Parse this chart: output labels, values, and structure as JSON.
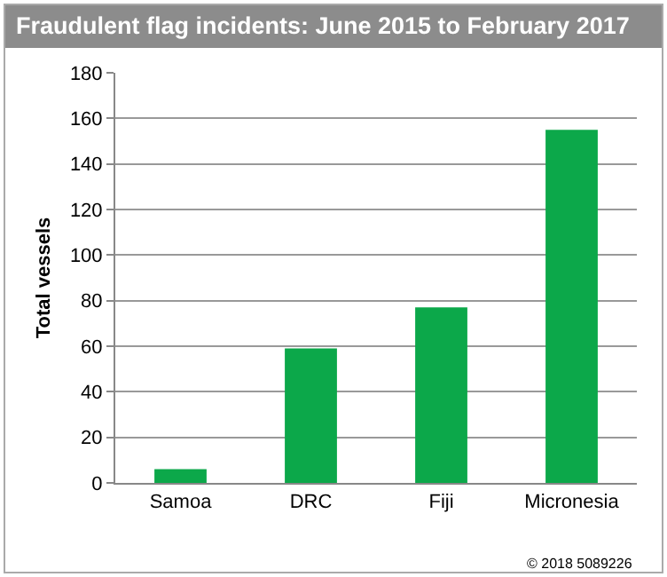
{
  "chart_data": {
    "type": "bar",
    "title": "Fraudulent flag incidents: June 2015 to February 2017",
    "categories": [
      "Samoa",
      "DRC",
      "Fiji",
      "Micronesia"
    ],
    "values": [
      6,
      59,
      77,
      155
    ],
    "color": "#0ca84a",
    "ylabel": "Total vessels",
    "ylim": [
      0,
      180
    ],
    "yticks": [
      0,
      20,
      40,
      60,
      80,
      100,
      120,
      140,
      160,
      180
    ],
    "grid": "y",
    "annotations": [
      "© 2018 5089226"
    ]
  }
}
